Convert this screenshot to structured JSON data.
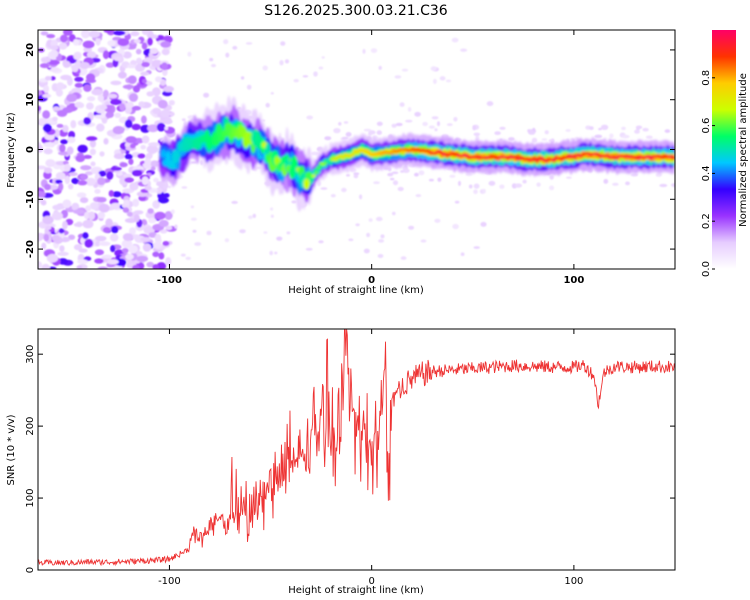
{
  "title": "S126.2025.300.03.21.C36",
  "chart_data": [
    {
      "type": "heatmap",
      "xlabel": "Height of straight line (km)",
      "ylabel": "Frequency (Hz)",
      "xlim": [
        -165,
        150
      ],
      "ylim": [
        -24,
        24
      ],
      "xticks": [
        -100,
        0,
        100
      ],
      "yticks": [
        -20,
        -10,
        0,
        10,
        20
      ],
      "grid": false,
      "ridge_track": {
        "x": [
          -100,
          -95,
          -90,
          -85,
          -80,
          -75,
          -70,
          -65,
          -60,
          -55,
          -50,
          -45,
          -40,
          -35,
          -30,
          -25,
          -20,
          -15,
          -10,
          -5,
          0,
          10,
          20,
          30,
          40,
          50,
          60,
          70,
          75,
          80,
          85,
          90,
          95,
          100,
          105,
          110,
          120,
          130,
          140,
          148
        ],
        "freq": [
          -3,
          -1,
          2,
          1.5,
          2,
          3,
          4,
          3,
          1.5,
          1.5,
          -2,
          -3,
          -3,
          -5.5,
          -6,
          -3,
          -2,
          -1.5,
          -1,
          0,
          -1,
          -0.5,
          0,
          -0.5,
          -1,
          -1.5,
          -1.5,
          -1.5,
          -2,
          -2,
          -2,
          -2,
          -1.5,
          -1.5,
          -1,
          -1,
          -1.5,
          -1.5,
          -1.5,
          -1.5
        ]
      },
      "colorbar": {
        "label": "Normalized spectral amplitude",
        "range": [
          0.0,
          1.0
        ],
        "ticks": [
          "0.0",
          "0.2",
          "0.4",
          "0.6",
          "0.8"
        ],
        "ticks_values": [
          0.0,
          0.2,
          0.4,
          0.6,
          0.8
        ],
        "colors": [
          "#ffffff",
          "#e6ccff",
          "#9933ff",
          "#3300ff",
          "#00c8ff",
          "#00ff66",
          "#ccff00",
          "#ffcc00",
          "#ff3300",
          "#ff0066"
        ]
      }
    },
    {
      "type": "line",
      "xlabel": "Height of straight line (km)",
      "ylabel": "SNR (10 * v/v)",
      "xlim": [
        -165,
        150
      ],
      "ylim": [
        0,
        335
      ],
      "xticks": [
        -100,
        0,
        100
      ],
      "yticks": [
        0,
        100,
        200,
        300
      ],
      "grid": false,
      "series": [
        {
          "name": "SNR",
          "color": "#ee3333",
          "x": [
            -165,
            -150,
            -140,
            -130,
            -120,
            -110,
            -100,
            -95,
            -90,
            -88,
            -85,
            -80,
            -75,
            -70,
            -65,
            -60,
            -55,
            -50,
            -45,
            -40,
            -35,
            -30,
            -25,
            -20,
            -15,
            -13,
            -10,
            -5,
            0,
            3,
            5,
            7,
            8,
            10,
            15,
            20,
            25,
            30,
            40,
            50,
            60,
            70,
            80,
            90,
            100,
            105,
            110,
            112,
            115,
            120,
            130,
            140,
            150
          ],
          "values": [
            10,
            10,
            11,
            11,
            12,
            13,
            15,
            22,
            30,
            55,
            45,
            60,
            70,
            65,
            75,
            85,
            95,
            110,
            130,
            140,
            160,
            180,
            210,
            180,
            190,
            330,
            200,
            190,
            170,
            180,
            260,
            280,
            100,
            240,
            255,
            265,
            272,
            276,
            278,
            280,
            282,
            284,
            283,
            282,
            282,
            285,
            270,
            230,
            275,
            283,
            282,
            283,
            282
          ]
        }
      ]
    }
  ]
}
